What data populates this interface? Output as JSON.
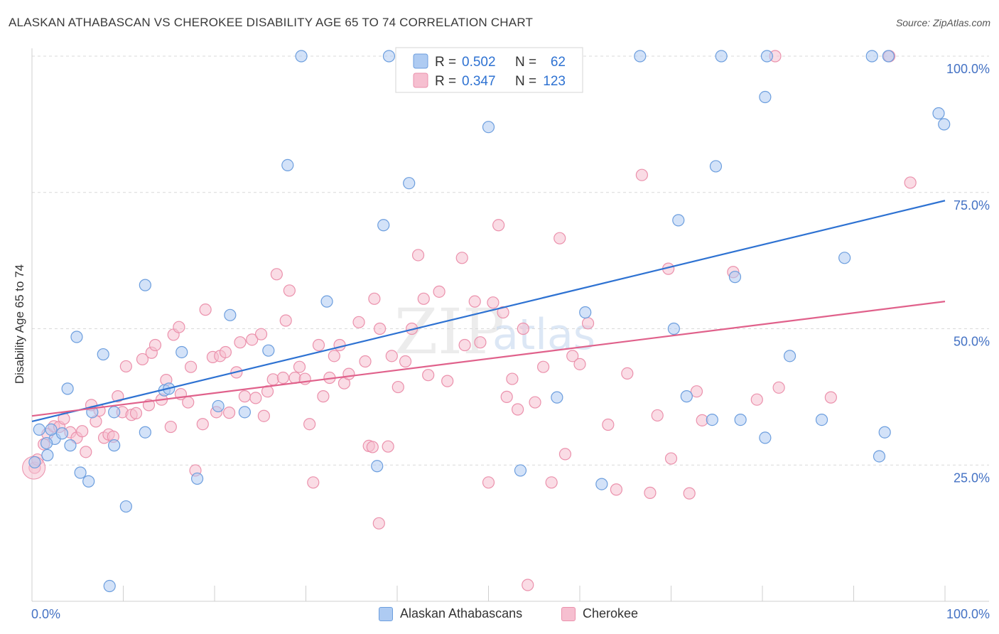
{
  "title": "ALASKAN ATHABASCAN VS CHEROKEE DISABILITY AGE 65 TO 74 CORRELATION CHART",
  "source": "Source: ZipAtlas.com",
  "watermark": {
    "zip": "ZIP",
    "atlas": "atlas"
  },
  "colors": {
    "blue_fill": "#aecbf2",
    "blue_stroke": "#6c9ede",
    "blue_line": "#2e72d2",
    "pink_fill": "#f6bfd0",
    "pink_stroke": "#eb91ac",
    "pink_line": "#e0618b",
    "axis_label": "#4472c4",
    "grid": "#d9d9d9"
  },
  "legend_box": {
    "rows": [
      {
        "r_label": "R =",
        "r_value": "0.502",
        "n_label": "N =",
        "n_value": "62"
      },
      {
        "r_label": "R =",
        "r_value": "0.347",
        "n_label": "N =",
        "n_value": "123"
      }
    ]
  },
  "chart_data": {
    "type": "scatter",
    "title": "ALASKAN ATHABASCAN VS CHEROKEE DISABILITY AGE 65 TO 74 CORRELATION CHART",
    "xlabel": "",
    "ylabel": "Disability Age 65 to 74",
    "xlim": [
      0,
      100
    ],
    "ylim": [
      0,
      100
    ],
    "x_tick_labels": [
      "0.0%",
      "100.0%"
    ],
    "y_tick_labels": [
      "25.0%",
      "50.0%",
      "75.0%",
      "100.0%"
    ],
    "y_ticks": [
      25,
      50,
      75,
      100
    ],
    "grid": true,
    "legend_position": "bottom",
    "series": [
      {
        "name": "Alaskan Athabascans",
        "r": 0.502,
        "n": 62,
        "trend": {
          "x0": 0,
          "y0": 33.0,
          "x1": 100,
          "y1": 73.5
        },
        "points": [
          [
            0.3,
            25.5
          ],
          [
            0.8,
            31.5
          ],
          [
            1.7,
            26.8
          ],
          [
            2.5,
            29.8
          ],
          [
            3.3,
            30.8
          ],
          [
            4.2,
            28.6
          ],
          [
            5.3,
            23.6
          ],
          [
            6.2,
            22.0
          ],
          [
            6.6,
            34.7
          ],
          [
            7.8,
            45.3
          ],
          [
            8.5,
            2.8
          ],
          [
            9.0,
            28.6
          ],
          [
            9.0,
            34.7
          ],
          [
            10.3,
            17.4
          ],
          [
            12.4,
            58.0
          ],
          [
            12.4,
            31.0
          ],
          [
            14.5,
            38.7
          ],
          [
            16.4,
            45.7
          ],
          [
            18.1,
            22.5
          ],
          [
            20.4,
            35.8
          ],
          [
            21.7,
            52.5
          ],
          [
            23.3,
            34.7
          ],
          [
            25.9,
            46.0
          ],
          [
            28.0,
            80.0
          ],
          [
            29.5,
            100.0
          ],
          [
            32.3,
            55.0
          ],
          [
            37.8,
            24.8
          ],
          [
            38.5,
            69.0
          ],
          [
            39.1,
            100.0
          ],
          [
            41.3,
            76.7
          ],
          [
            50.0,
            87.0
          ],
          [
            53.5,
            24.0
          ],
          [
            54.4,
            100.0
          ],
          [
            57.5,
            37.4
          ],
          [
            60.6,
            53.0
          ],
          [
            62.4,
            21.5
          ],
          [
            66.6,
            100.0
          ],
          [
            70.3,
            50.0
          ],
          [
            70.8,
            69.9
          ],
          [
            71.7,
            37.6
          ],
          [
            74.5,
            33.3
          ],
          [
            74.9,
            79.8
          ],
          [
            75.5,
            100.0
          ],
          [
            77.0,
            59.5
          ],
          [
            77.6,
            33.3
          ],
          [
            80.3,
            30.0
          ],
          [
            80.5,
            100.0
          ],
          [
            80.3,
            92.5
          ],
          [
            83.0,
            45.0
          ],
          [
            86.5,
            33.3
          ],
          [
            89.0,
            63.0
          ],
          [
            92.0,
            100.0
          ],
          [
            92.8,
            26.6
          ],
          [
            93.4,
            31.0
          ],
          [
            93.8,
            100.0
          ],
          [
            99.3,
            89.5
          ],
          [
            99.9,
            87.5
          ],
          [
            4.9,
            48.5
          ],
          [
            2.1,
            31.5
          ],
          [
            3.9,
            39.0
          ],
          [
            1.6,
            29.0
          ],
          [
            15.0,
            39.0
          ]
        ]
      },
      {
        "name": "Cherokee",
        "r": 0.347,
        "n": 123,
        "trend": {
          "x0": 0,
          "y0": 34.0,
          "x1": 100,
          "y1": 55.0
        },
        "points": [
          [
            0.3,
            24.5
          ],
          [
            0.6,
            26.0
          ],
          [
            1.3,
            28.8
          ],
          [
            1.7,
            30.7
          ],
          [
            2.4,
            32.1
          ],
          [
            3.0,
            32.0
          ],
          [
            3.5,
            33.5
          ],
          [
            4.2,
            31.0
          ],
          [
            4.9,
            30.0
          ],
          [
            5.5,
            31.2
          ],
          [
            5.9,
            27.4
          ],
          [
            6.5,
            36.0
          ],
          [
            7.0,
            33.0
          ],
          [
            7.4,
            35.0
          ],
          [
            7.9,
            30.0
          ],
          [
            8.4,
            30.6
          ],
          [
            8.9,
            30.2
          ],
          [
            9.4,
            37.6
          ],
          [
            9.9,
            34.7
          ],
          [
            10.3,
            43.1
          ],
          [
            10.9,
            34.2
          ],
          [
            11.4,
            34.5
          ],
          [
            12.1,
            44.4
          ],
          [
            12.8,
            36.0
          ],
          [
            13.1,
            45.6
          ],
          [
            13.5,
            47.0
          ],
          [
            14.2,
            37.0
          ],
          [
            14.7,
            40.6
          ],
          [
            15.2,
            32.0
          ],
          [
            15.5,
            48.9
          ],
          [
            16.1,
            50.3
          ],
          [
            16.3,
            38.0
          ],
          [
            17.1,
            36.5
          ],
          [
            17.4,
            43.0
          ],
          [
            17.9,
            24.0
          ],
          [
            18.7,
            32.5
          ],
          [
            19.0,
            53.5
          ],
          [
            19.8,
            44.8
          ],
          [
            20.2,
            34.7
          ],
          [
            20.6,
            45.0
          ],
          [
            21.2,
            45.7
          ],
          [
            21.6,
            34.6
          ],
          [
            22.4,
            42.0
          ],
          [
            22.8,
            47.5
          ],
          [
            23.3,
            37.6
          ],
          [
            24.1,
            48.0
          ],
          [
            24.5,
            37.3
          ],
          [
            25.1,
            49.0
          ],
          [
            25.4,
            34.0
          ],
          [
            25.8,
            38.5
          ],
          [
            26.4,
            40.7
          ],
          [
            26.8,
            60.0
          ],
          [
            27.5,
            41.0
          ],
          [
            27.8,
            51.5
          ],
          [
            28.2,
            57.0
          ],
          [
            28.8,
            41.0
          ],
          [
            29.3,
            43.0
          ],
          [
            29.9,
            40.8
          ],
          [
            30.4,
            32.5
          ],
          [
            30.8,
            21.8
          ],
          [
            31.4,
            47.0
          ],
          [
            31.9,
            37.6
          ],
          [
            32.6,
            41.0
          ],
          [
            33.1,
            45.0
          ],
          [
            33.7,
            47.0
          ],
          [
            34.2,
            40.0
          ],
          [
            34.7,
            41.7
          ],
          [
            35.8,
            51.2
          ],
          [
            36.5,
            44.0
          ],
          [
            36.9,
            28.5
          ],
          [
            37.5,
            55.5
          ],
          [
            38.1,
            50.0
          ],
          [
            39.0,
            28.4
          ],
          [
            39.4,
            45.0
          ],
          [
            40.1,
            39.3
          ],
          [
            40.9,
            44.0
          ],
          [
            41.6,
            50.0
          ],
          [
            42.3,
            63.5
          ],
          [
            42.9,
            55.5
          ],
          [
            43.4,
            41.5
          ],
          [
            44.6,
            56.8
          ],
          [
            45.5,
            40.4
          ],
          [
            47.1,
            63.0
          ],
          [
            47.4,
            47.0
          ],
          [
            48.5,
            55.0
          ],
          [
            49.1,
            47.5
          ],
          [
            50.0,
            21.8
          ],
          [
            50.5,
            54.8
          ],
          [
            51.1,
            69.0
          ],
          [
            51.6,
            53.0
          ],
          [
            52.0,
            37.5
          ],
          [
            52.6,
            40.8
          ],
          [
            53.2,
            35.2
          ],
          [
            53.8,
            50.0
          ],
          [
            54.3,
            3.0
          ],
          [
            55.1,
            36.5
          ],
          [
            56.0,
            43.0
          ],
          [
            56.9,
            21.8
          ],
          [
            57.8,
            66.6
          ],
          [
            58.4,
            27.0
          ],
          [
            59.2,
            45.0
          ],
          [
            60.0,
            43.5
          ],
          [
            60.9,
            51.0
          ],
          [
            63.1,
            32.4
          ],
          [
            64.0,
            20.5
          ],
          [
            65.2,
            41.8
          ],
          [
            66.8,
            78.2
          ],
          [
            67.7,
            19.9
          ],
          [
            68.5,
            34.1
          ],
          [
            69.7,
            61.0
          ],
          [
            70.0,
            26.2
          ],
          [
            72.0,
            19.8
          ],
          [
            72.8,
            38.5
          ],
          [
            73.4,
            33.2
          ],
          [
            76.8,
            60.4
          ],
          [
            79.4,
            37.0
          ],
          [
            81.4,
            100.0
          ],
          [
            81.8,
            39.2
          ],
          [
            87.5,
            37.4
          ],
          [
            93.9,
            100.0
          ],
          [
            96.2,
            76.8
          ],
          [
            38.0,
            14.3
          ],
          [
            37.3,
            28.3
          ]
        ]
      }
    ]
  }
}
